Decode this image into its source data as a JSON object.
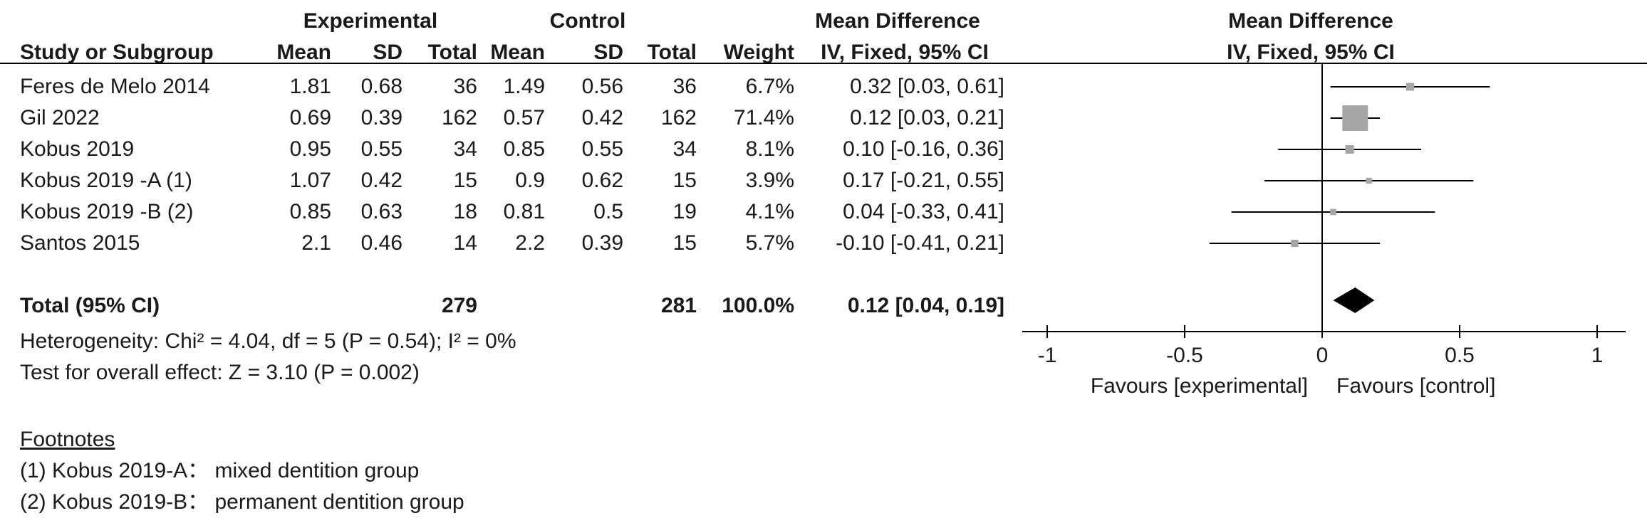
{
  "header": {
    "group_experimental": "Experimental",
    "group_control": "Control",
    "md_title_left": "Mean Difference",
    "md_title_right": "Mean Difference",
    "col_study": "Study or Subgroup",
    "col_mean_e": "Mean",
    "col_sd_e": "SD",
    "col_total_e": "Total",
    "col_mean_c": "Mean",
    "col_sd_c": "SD",
    "col_total_c": "Total",
    "col_weight": "Weight",
    "col_method_left": "IV, Fixed, 95% CI",
    "col_method_right": "IV, Fixed, 95% CI"
  },
  "studies": [
    {
      "name": "Feres de Melo 2014",
      "mean_e": "1.81",
      "sd_e": "0.68",
      "total_e": "36",
      "mean_c": "1.49",
      "sd_c": "0.56",
      "total_c": "36",
      "weight": "6.7%",
      "ci": "0.32 [0.03, 0.61]"
    },
    {
      "name": "Gil 2022",
      "mean_e": "0.69",
      "sd_e": "0.39",
      "total_e": "162",
      "mean_c": "0.57",
      "sd_c": "0.42",
      "total_c": "162",
      "weight": "71.4%",
      "ci": "0.12 [0.03, 0.21]"
    },
    {
      "name": "Kobus 2019",
      "mean_e": "0.95",
      "sd_e": "0.55",
      "total_e": "34",
      "mean_c": "0.85",
      "sd_c": "0.55",
      "total_c": "34",
      "weight": "8.1%",
      "ci": "0.10 [-0.16, 0.36]"
    },
    {
      "name": "Kobus 2019 -A (1)",
      "mean_e": "1.07",
      "sd_e": "0.42",
      "total_e": "15",
      "mean_c": "0.9",
      "sd_c": "0.62",
      "total_c": "15",
      "weight": "3.9%",
      "ci": "0.17 [-0.21, 0.55]"
    },
    {
      "name": "Kobus 2019 -B (2)",
      "mean_e": "0.85",
      "sd_e": "0.63",
      "total_e": "18",
      "mean_c": "0.81",
      "sd_c": "0.5",
      "total_c": "19",
      "weight": "4.1%",
      "ci": "0.04 [-0.33, 0.41]"
    },
    {
      "name": "Santos 2015",
      "mean_e": "2.1",
      "sd_e": "0.46",
      "total_e": "14",
      "mean_c": "2.2",
      "sd_c": "0.39",
      "total_c": "15",
      "weight": "5.7%",
      "ci": "-0.10 [-0.41, 0.21]"
    }
  ],
  "total": {
    "label": "Total (95% CI)",
    "total_e": "279",
    "total_c": "281",
    "weight": "100.0%",
    "ci": "0.12 [0.04, 0.19]"
  },
  "heterogeneity": "Heterogeneity: Chi² = 4.04, df = 5 (P = 0.54); I² = 0%",
  "overall_effect": "Test for overall effect: Z = 3.10 (P = 0.002)",
  "footnotes": {
    "title": "Footnotes",
    "items": [
      "(1) Kobus 2019-A： mixed dentition group",
      "(2) Kobus 2019-B： permanent dentition group"
    ]
  },
  "chart_data": {
    "type": "forest",
    "x_ticks": [
      -1,
      -0.5,
      0,
      0.5,
      1
    ],
    "x_tick_labels": [
      "-1",
      "-0.5",
      "0",
      "0.5",
      "1"
    ],
    "xlim": [
      -1,
      1
    ],
    "favours_left": "Favours [experimental]",
    "favours_right": "Favours [control]",
    "series": [
      {
        "study": "Feres de Melo 2014",
        "md": 0.32,
        "lower": 0.03,
        "upper": 0.61,
        "weight": 6.7
      },
      {
        "study": "Gil 2022",
        "md": 0.12,
        "lower": 0.03,
        "upper": 0.21,
        "weight": 71.4
      },
      {
        "study": "Kobus 2019",
        "md": 0.1,
        "lower": -0.16,
        "upper": 0.36,
        "weight": 8.1
      },
      {
        "study": "Kobus 2019 -A (1)",
        "md": 0.17,
        "lower": -0.21,
        "upper": 0.55,
        "weight": 3.9
      },
      {
        "study": "Kobus 2019 -B (2)",
        "md": 0.04,
        "lower": -0.33,
        "upper": 0.41,
        "weight": 4.1
      },
      {
        "study": "Santos 2015",
        "md": -0.1,
        "lower": -0.41,
        "upper": 0.21,
        "weight": 5.7
      }
    ],
    "pooled": {
      "md": 0.12,
      "lower": 0.04,
      "upper": 0.19
    },
    "marker_color": "#a6a6a6",
    "diamond_color": "#000000"
  }
}
